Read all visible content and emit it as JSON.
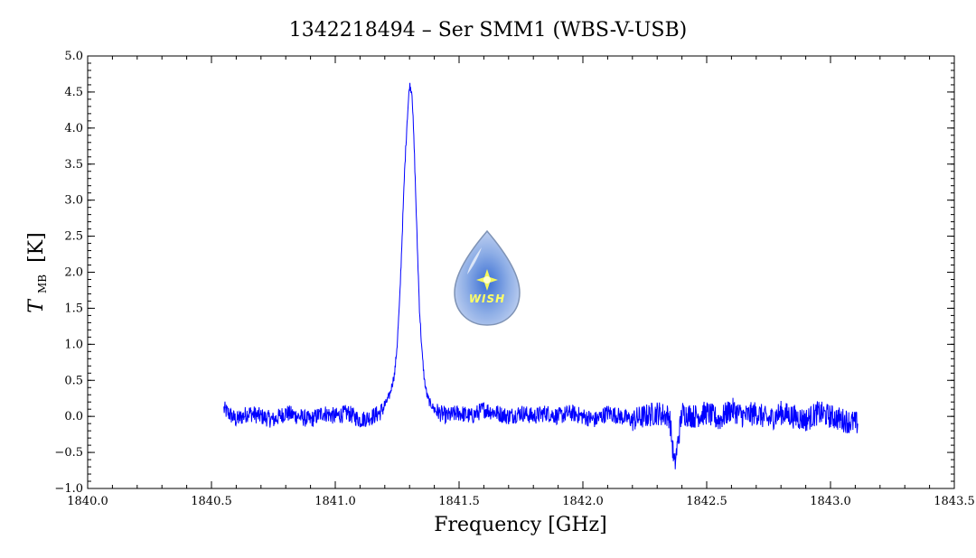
{
  "chart_data": {
    "type": "line",
    "title": "1342218494 – Ser SMM1 (WBS-V-USB)",
    "xlabel": "Frequency [GHz]",
    "ylabel_main": "T",
    "ylabel_sub": "MB",
    "ylabel_unit": "[K]",
    "xlim": [
      1840.0,
      1843.5
    ],
    "ylim": [
      -1.0,
      5.0
    ],
    "x_ticks": [
      1840.0,
      1840.5,
      1841.0,
      1841.5,
      1842.0,
      1842.5,
      1843.0,
      1843.5
    ],
    "x_tick_labels": [
      "1840.0",
      "1840.5",
      "1841.0",
      "1841.5",
      "1842.0",
      "1842.5",
      "1843.0",
      "1843.5"
    ],
    "y_ticks": [
      -1.0,
      -0.5,
      0.0,
      0.5,
      1.0,
      1.5,
      2.0,
      2.5,
      3.0,
      3.5,
      4.0,
      4.5,
      5.0
    ],
    "y_tick_labels": [
      "−1.0",
      "−0.5",
      "0.0",
      "0.5",
      "1.0",
      "1.5",
      "2.0",
      "2.5",
      "3.0",
      "3.5",
      "4.0",
      "4.5",
      "5.0"
    ],
    "grid": false,
    "series": [
      {
        "color": "#0000ff",
        "x": [
          1840.55,
          1840.6,
          1840.65,
          1840.7,
          1840.75,
          1840.8,
          1840.85,
          1840.9,
          1840.95,
          1841.0,
          1841.05,
          1841.1,
          1841.15,
          1841.18,
          1841.2,
          1841.22,
          1841.24,
          1841.25,
          1841.26,
          1841.27,
          1841.28,
          1841.29,
          1841.3,
          1841.31,
          1841.32,
          1841.33,
          1841.34,
          1841.35,
          1841.36,
          1841.37,
          1841.38,
          1841.4,
          1841.42,
          1841.45,
          1841.5,
          1841.55,
          1841.6,
          1841.65,
          1841.7,
          1841.75,
          1841.8,
          1841.85,
          1841.9,
          1841.95,
          1842.0,
          1842.05,
          1842.1,
          1842.15,
          1842.2,
          1842.25,
          1842.3,
          1842.35,
          1842.37,
          1842.4,
          1842.45,
          1842.5,
          1842.55,
          1842.6,
          1842.65,
          1842.7,
          1842.75,
          1842.8,
          1842.85,
          1842.9,
          1842.95,
          1843.0,
          1843.05,
          1843.11
        ],
        "y": [
          0.1,
          -0.05,
          0.05,
          0.0,
          -0.05,
          0.05,
          0.0,
          -0.05,
          0.05,
          0.0,
          0.05,
          -0.05,
          0.0,
          0.05,
          0.15,
          0.3,
          0.6,
          1.0,
          1.6,
          2.5,
          3.4,
          4.1,
          4.6,
          4.5,
          3.6,
          2.5,
          1.5,
          0.9,
          0.5,
          0.3,
          0.2,
          0.1,
          0.05,
          0.0,
          0.05,
          0.0,
          0.1,
          0.05,
          0.0,
          0.05,
          0.0,
          0.05,
          0.0,
          0.05,
          0.0,
          -0.05,
          0.05,
          0.0,
          -0.05,
          0.0,
          0.05,
          0.0,
          -0.7,
          0.05,
          0.0,
          0.05,
          -0.05,
          0.1,
          0.0,
          0.05,
          -0.05,
          0.05,
          0.0,
          -0.05,
          0.05,
          0.0,
          -0.05,
          -0.1
        ]
      }
    ]
  },
  "logo": {
    "text": "WISH",
    "colors": {
      "outer": "#9db5e0",
      "inner": "#4f7fd6",
      "star": "#ffff55"
    }
  }
}
